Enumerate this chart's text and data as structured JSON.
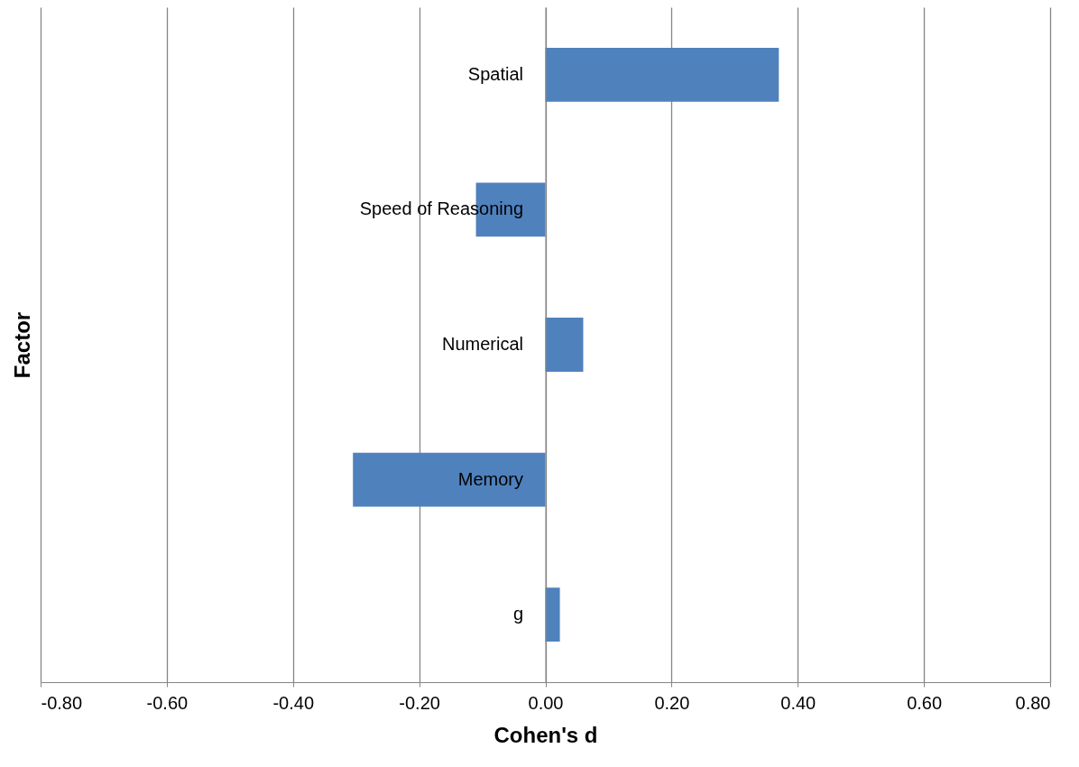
{
  "chart_data": {
    "type": "bar",
    "orientation": "horizontal",
    "xlabel": "Cohen's d",
    "ylabel": "Factor",
    "categories": [
      "Spatial",
      "Speed of Reasoning",
      "Numerical",
      "Memory",
      "g"
    ],
    "values": [
      0.37,
      -0.11,
      0.06,
      -0.305,
      0.023
    ],
    "color": "#4f81bd",
    "xlim": [
      -0.8,
      0.8
    ],
    "xticks": [
      {
        "value": -0.8,
        "label": "-0.80"
      },
      {
        "value": -0.6,
        "label": "-0.60"
      },
      {
        "value": -0.4,
        "label": "-0.40"
      },
      {
        "value": -0.2,
        "label": "-0.20"
      },
      {
        "value": 0,
        "label": "0.00"
      },
      {
        "value": 0.2,
        "label": "0.20"
      },
      {
        "value": 0.4,
        "label": "0.40"
      },
      {
        "value": 0.6,
        "label": "0.60"
      },
      {
        "value": 0.8,
        "label": "0.80"
      }
    ],
    "grid": "x"
  }
}
